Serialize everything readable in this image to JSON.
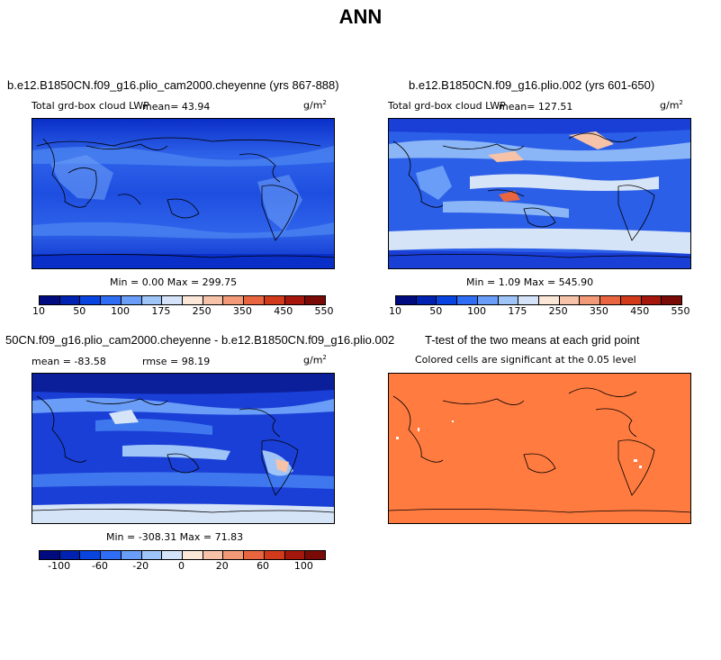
{
  "title": "ANN",
  "panels": [
    {
      "title": "b.e12.B1850CN.f09_g16.plio_cam2000.cheyenne (yrs 867-888)",
      "variable": "Total grd-box cloud LWP",
      "mean_label": "mean=  43.94",
      "units": "g/m",
      "units_exp": "2",
      "min_max": "Min =    0.00 Max = 299.75",
      "colorbar_ticks": [
        "10",
        "50",
        "100",
        "175",
        "250",
        "350",
        "450",
        "550"
      ]
    },
    {
      "title": "b.e12.B1850CN.f09_g16.plio.002 (yrs 601-650)",
      "variable": "Total grd-box cloud LWP",
      "mean_label": "mean= 127.51",
      "units": "g/m",
      "units_exp": "2",
      "min_max": "Min =    1.09 Max = 545.90",
      "colorbar_ticks": [
        "10",
        "50",
        "100",
        "175",
        "250",
        "350",
        "450",
        "550"
      ]
    },
    {
      "title": "50CN.f09_g16.plio_cam2000.cheyenne - b.e12.B1850CN.f09_g16.plio.002",
      "mean_label": "mean = -83.58",
      "rmse_label": "rmse =  98.19",
      "units": "g/m",
      "units_exp": "2",
      "min_max": "Min = -308.31 Max =  71.83",
      "colorbar_ticks": [
        "-100",
        "-60",
        "-20",
        "0",
        "20",
        "60",
        "100"
      ]
    },
    {
      "title": "T-test of the two means at each grid point",
      "subtitle": "Colored cells are significant at the 0.05 level",
      "fill_color": "#ff7b40"
    }
  ],
  "colors": {
    "abs_scale": [
      "#000b80",
      "#0022b0",
      "#0a44e0",
      "#2f6df5",
      "#6a9df7",
      "#9fc4f7",
      "#d4e3f7",
      "#fbe7d8",
      "#f7c3a8",
      "#f29a78",
      "#e8653f",
      "#d23a1c",
      "#a5170c",
      "#7a0a05"
    ],
    "diff_scale": [
      "#000b80",
      "#0022b0",
      "#0a44e0",
      "#2f6df5",
      "#6a9df7",
      "#9fc4f7",
      "#d4e3f7",
      "#fbe7d8",
      "#f7c3a8",
      "#f29a78",
      "#e8653f",
      "#d23a1c",
      "#a5170c",
      "#7a0a05"
    ],
    "ocean_low": "#1a3fd6",
    "ocean_mid": "#3f78ee",
    "pale": "#d6e4f7",
    "deep": "#0b1f9a",
    "ttest": "#ff7b40"
  }
}
